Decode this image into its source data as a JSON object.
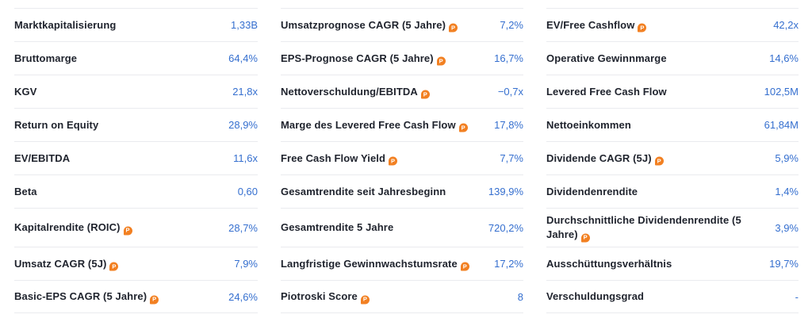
{
  "table": {
    "label_color": "#20242e",
    "value_color": "#356fcf",
    "divider_color": "#eaebef",
    "badge_color": "#f28022",
    "badge_glyph": "P",
    "columns": [
      {
        "rows": [
          {
            "label": "Marktkapitalisierung",
            "value": "1,33B",
            "badge": false
          },
          {
            "label": "Bruttomarge",
            "value": "64,4%",
            "badge": false
          },
          {
            "label": "KGV",
            "value": "21,8x",
            "badge": false
          },
          {
            "label": "Return on Equity",
            "value": "28,9%",
            "badge": false
          },
          {
            "label": "EV/EBITDA",
            "value": "11,6x",
            "badge": false
          },
          {
            "label": "Beta",
            "value": "0,60",
            "badge": false
          },
          {
            "label": "Kapitalrendite (ROIC)",
            "value": "28,7%",
            "badge": true
          },
          {
            "label": "Umsatz CAGR (5J)",
            "value": "7,9%",
            "badge": true
          },
          {
            "label": "Basic-EPS CAGR (5 Jahre)",
            "value": "24,6%",
            "badge": true
          }
        ]
      },
      {
        "rows": [
          {
            "label": "Umsatzprognose CAGR (5 Jahre)",
            "value": "7,2%",
            "badge": true
          },
          {
            "label": "EPS-Prognose CAGR (5 Jahre)",
            "value": "16,7%",
            "badge": true
          },
          {
            "label": "Nettoverschuldung/EBITDA",
            "value": "−0,7x",
            "badge": true
          },
          {
            "label": "Marge des Levered Free Cash Flow",
            "value": "17,8%",
            "badge": true
          },
          {
            "label": "Free Cash Flow Yield",
            "value": "7,7%",
            "badge": true
          },
          {
            "label": "Gesamtrendite seit Jahresbeginn",
            "value": "139,9%",
            "badge": false
          },
          {
            "label": "Gesamtrendite 5 Jahre",
            "value": "720,2%",
            "badge": false
          },
          {
            "label": "Langfristige Gewinnwachstumsrate",
            "value": "17,2%",
            "badge": true
          },
          {
            "label": "Piotroski Score",
            "value": "8",
            "badge": true
          }
        ]
      },
      {
        "rows": [
          {
            "label": "EV/Free Cashflow",
            "value": "42,2x",
            "badge": true
          },
          {
            "label": "Operative Gewinnmarge",
            "value": "14,6%",
            "badge": false
          },
          {
            "label": "Levered Free Cash Flow",
            "value": "102,5M",
            "badge": false
          },
          {
            "label": "Nettoeinkommen",
            "value": "61,84M",
            "badge": false
          },
          {
            "label": "Dividende CAGR (5J)",
            "value": "5,9%",
            "badge": true
          },
          {
            "label": "Dividendenrendite",
            "value": "1,4%",
            "badge": false
          },
          {
            "label": "Durchschnittliche Dividendenrendite (5 Jahre)",
            "value": "3,9%",
            "badge": true
          },
          {
            "label": "Ausschüttungsverhältnis",
            "value": "19,7%",
            "badge": false
          },
          {
            "label": "Verschuldungsgrad",
            "value": "-",
            "badge": false
          }
        ]
      }
    ]
  }
}
